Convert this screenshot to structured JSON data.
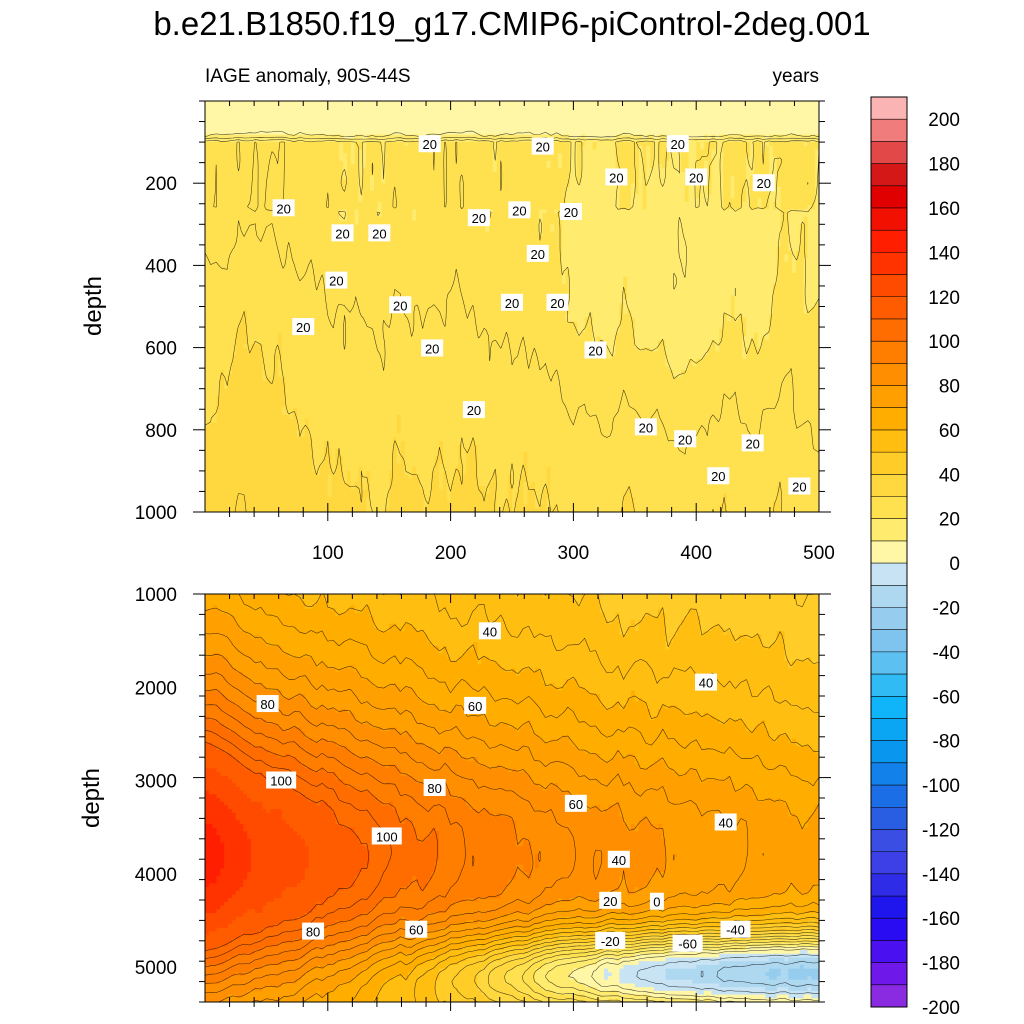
{
  "chart_data": [
    {
      "type": "heatmap",
      "subtype": "filled contour",
      "panel": "upper",
      "title": "b.e21.B1850.f19_g17.CMIP6-piControl-2deg.001",
      "subtitle_left": "IAGE anomaly, 90S-44S",
      "subtitle_right": "years",
      "xlabel": "",
      "ylabel": "depth",
      "xlim": [
        0,
        500
      ],
      "ylim": [
        1000,
        0
      ],
      "x_ticks": [
        100,
        200,
        300,
        400,
        500
      ],
      "y_ticks": [
        200,
        400,
        600,
        800,
        1000
      ],
      "value_range": [
        0,
        60
      ],
      "contour_labels": [
        {
          "text": "20",
          "x": 183,
          "y": 105
        },
        {
          "text": "20",
          "x": 275,
          "y": 111
        },
        {
          "text": "20",
          "x": 385,
          "y": 105
        },
        {
          "text": "20",
          "x": 335,
          "y": 186
        },
        {
          "text": "20",
          "x": 400,
          "y": 186
        },
        {
          "text": "20",
          "x": 455,
          "y": 200
        },
        {
          "text": "20",
          "x": 64,
          "y": 261
        },
        {
          "text": "20",
          "x": 112,
          "y": 322
        },
        {
          "text": "20",
          "x": 142,
          "y": 322
        },
        {
          "text": "20",
          "x": 223,
          "y": 285
        },
        {
          "text": "20",
          "x": 256,
          "y": 266
        },
        {
          "text": "20",
          "x": 298,
          "y": 270
        },
        {
          "text": "20",
          "x": 271,
          "y": 372
        },
        {
          "text": "20",
          "x": 107,
          "y": 437
        },
        {
          "text": "20",
          "x": 159,
          "y": 497
        },
        {
          "text": "20",
          "x": 250,
          "y": 491
        },
        {
          "text": "20",
          "x": 287,
          "y": 491
        },
        {
          "text": "20",
          "x": 80,
          "y": 550
        },
        {
          "text": "20",
          "x": 185,
          "y": 602
        },
        {
          "text": "20",
          "x": 318,
          "y": 607
        },
        {
          "text": "20",
          "x": 219,
          "y": 752
        },
        {
          "text": "20",
          "x": 359,
          "y": 794
        },
        {
          "text": "20",
          "x": 391,
          "y": 823
        },
        {
          "text": "20",
          "x": 446,
          "y": 833
        },
        {
          "text": "20",
          "x": 418,
          "y": 913
        },
        {
          "text": "20",
          "x": 484,
          "y": 938
        }
      ]
    },
    {
      "type": "heatmap",
      "subtype": "filled contour",
      "panel": "lower",
      "xlabel": "",
      "ylabel": "depth",
      "xlim": [
        0,
        500
      ],
      "ylim": [
        5375,
        1000
      ],
      "y_ticks": [
        1000,
        2000,
        3000,
        4000,
        5000
      ],
      "value_range": [
        -60,
        110
      ],
      "contour_labels": [
        {
          "text": "40",
          "x": 232,
          "y": 1400
        },
        {
          "text": "40",
          "x": 408,
          "y": 1950
        },
        {
          "text": "80",
          "x": 51,
          "y": 2180
        },
        {
          "text": "60",
          "x": 220,
          "y": 2200
        },
        {
          "text": "100",
          "x": 62,
          "y": 3000
        },
        {
          "text": "80",
          "x": 187,
          "y": 3080
        },
        {
          "text": "60",
          "x": 302,
          "y": 3250
        },
        {
          "text": "100",
          "x": 148,
          "y": 3600
        },
        {
          "text": "40",
          "x": 424,
          "y": 3450
        },
        {
          "text": "40",
          "x": 337,
          "y": 3850
        },
        {
          "text": "20",
          "x": 330,
          "y": 4290
        },
        {
          "text": "0",
          "x": 368,
          "y": 4300
        },
        {
          "text": "-20",
          "x": 330,
          "y": 4720
        },
        {
          "text": "-60",
          "x": 393,
          "y": 4750
        },
        {
          "text": "-40",
          "x": 432,
          "y": 4600
        },
        {
          "text": "80",
          "x": 88,
          "y": 4620
        },
        {
          "text": "60",
          "x": 172,
          "y": 4600
        }
      ]
    }
  ],
  "colorbar": {
    "labels": [
      "200",
      "180",
      "160",
      "140",
      "120",
      "100",
      "80",
      "60",
      "40",
      "20",
      "0",
      "-20",
      "-40",
      "-60",
      "-80",
      "-100",
      "-120",
      "-140",
      "-160",
      "-180",
      "-200"
    ],
    "colors": [
      "#fbb4b4",
      "#f07c7c",
      "#e34848",
      "#d41818",
      "#e00000",
      "#f21000",
      "#ff1f00",
      "#ff3300",
      "#ff4b00",
      "#ff5c00",
      "#ff6d00",
      "#ff7e00",
      "#ff8f00",
      "#ffa000",
      "#ffae00",
      "#ffbe10",
      "#ffcc28",
      "#ffd840",
      "#ffe150",
      "#ffeb6e",
      "#fff6a6",
      "#c8e4f4",
      "#aed8f0",
      "#96cdee",
      "#7ec4ee",
      "#5cc0f0",
      "#30bbf5",
      "#10b4f8",
      "#0aa6f4",
      "#0896ee",
      "#1282ea",
      "#1c6ee6",
      "#2a5ee2",
      "#3a4ee4",
      "#3c40e6",
      "#2f2ce8",
      "#1f16ee",
      "#2a0cf2",
      "#4a10f0",
      "#6f18ea",
      "#8a2be2"
    ]
  }
}
